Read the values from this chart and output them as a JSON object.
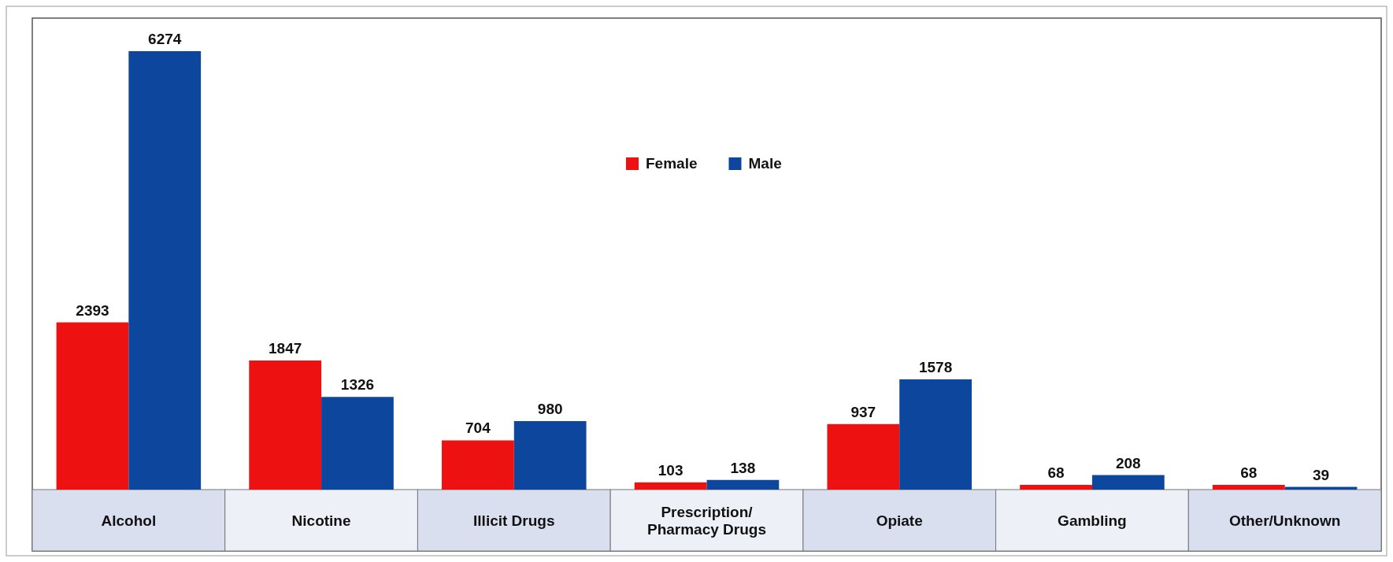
{
  "chart_data": {
    "type": "bar",
    "categories": [
      "Alcohol",
      "Nicotine",
      "Illicit Drugs",
      "Prescription/\nPharmacy Drugs",
      "Opiate",
      "Gambling",
      "Other/Unknown"
    ],
    "series": [
      {
        "name": "Female",
        "color": "#ee1111",
        "values": [
          2393,
          1847,
          704,
          103,
          937,
          68,
          68
        ]
      },
      {
        "name": "Male",
        "color": "#0c469d",
        "values": [
          6274,
          1326,
          980,
          138,
          1578,
          208,
          39
        ]
      }
    ],
    "data_labels": true,
    "legend": "top"
  }
}
